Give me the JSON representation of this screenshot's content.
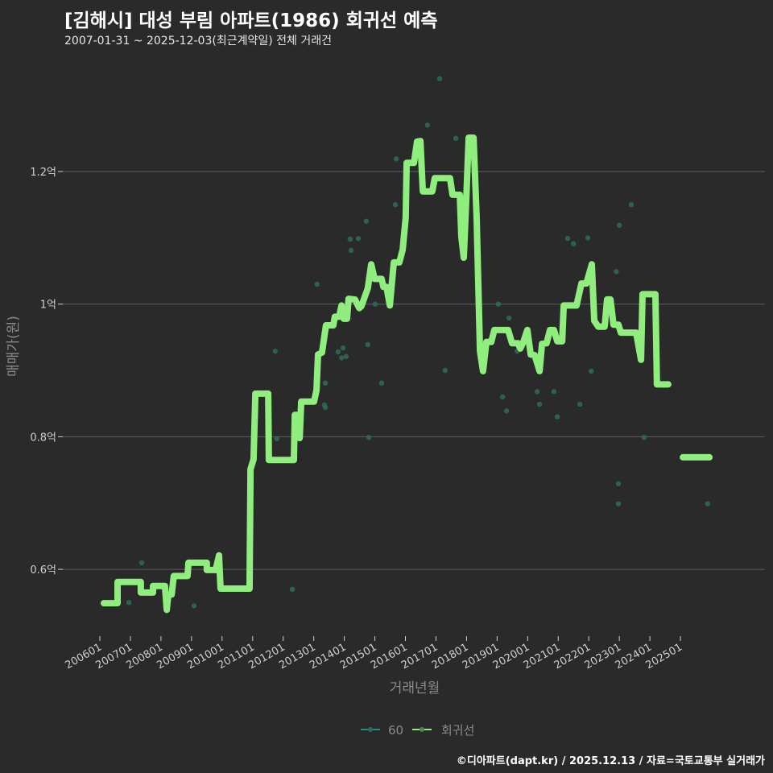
{
  "title": "[김해시] 대성 부림 아파트(1986) 회귀선 예측",
  "subtitle": "2007-01-31 ~ 2025-12-03(최근계약일) 전체 거래건",
  "footer": "©디아파트(dapt.kr) / 2025.12.13 / 자료=국토교통부 실거래가",
  "colors": {
    "background": "#2b2a2a",
    "grid": "#5e5e5e",
    "line": "#90ee7e",
    "scatter": "#2e6b5b",
    "legend_60": "#1f8a8a"
  },
  "chart_data": {
    "type": "line",
    "xlabel": "거래년월",
    "ylabel": "매매가(원)",
    "xlim": [
      2005.85,
      2028.8
    ],
    "ylim": [
      0.485,
      1.37
    ],
    "grid": true,
    "legend_position": "bottom",
    "legend": [
      "60",
      "회귀선"
    ],
    "x_ticks": [
      {
        "label": "200601",
        "x": 2006
      },
      {
        "label": "200701",
        "x": 2007
      },
      {
        "label": "200801",
        "x": 2008
      },
      {
        "label": "200901",
        "x": 2009
      },
      {
        "label": "201001",
        "x": 2010
      },
      {
        "label": "201101",
        "x": 2011
      },
      {
        "label": "201201",
        "x": 2012
      },
      {
        "label": "201301",
        "x": 2013
      },
      {
        "label": "201401",
        "x": 2014
      },
      {
        "label": "201501",
        "x": 2015
      },
      {
        "label": "201601",
        "x": 2016
      },
      {
        "label": "201701",
        "x": 2017
      },
      {
        "label": "201801",
        "x": 2018
      },
      {
        "label": "201901",
        "x": 2019
      },
      {
        "label": "202001",
        "x": 2020
      },
      {
        "label": "202101",
        "x": 2021
      },
      {
        "label": "202201",
        "x": 2022
      },
      {
        "label": "202301",
        "x": 2023
      },
      {
        "label": "202401",
        "x": 2024
      },
      {
        "label": "202501",
        "x": 2025
      }
    ],
    "y_ticks": [
      {
        "label": "0.6억",
        "y": 0.6
      },
      {
        "label": "0.8억",
        "y": 0.8
      },
      {
        "label": "1억",
        "y": 1.0
      },
      {
        "label": "1.2억",
        "y": 1.2
      }
    ],
    "series": [
      {
        "name": "회귀선",
        "type": "line",
        "segments": [
          [
            [
              2006.13,
              0.549
            ],
            [
              2006.58,
              0.549
            ],
            [
              2006.58,
              0.581
            ],
            [
              2007.34,
              0.581
            ],
            [
              2007.34,
              0.565
            ],
            [
              2007.74,
              0.565
            ],
            [
              2007.74,
              0.575
            ],
            [
              2008.13,
              0.575
            ],
            [
              2008.19,
              0.539
            ],
            [
              2008.24,
              0.562
            ],
            [
              2008.35,
              0.562
            ],
            [
              2008.42,
              0.59
            ],
            [
              2008.87,
              0.59
            ],
            [
              2008.9,
              0.61
            ],
            [
              2009.5,
              0.61
            ],
            [
              2009.5,
              0.599
            ],
            [
              2009.79,
              0.599
            ],
            [
              2009.9,
              0.621
            ],
            [
              2009.95,
              0.571
            ],
            [
              2010.9,
              0.571
            ],
            [
              2010.93,
              0.751
            ],
            [
              2011.03,
              0.766
            ],
            [
              2011.09,
              0.865
            ],
            [
              2011.51,
              0.865
            ],
            [
              2011.53,
              0.765
            ],
            [
              2012.35,
              0.765
            ],
            [
              2012.38,
              0.833
            ],
            [
              2012.48,
              0.833
            ],
            [
              2012.54,
              0.798
            ],
            [
              2012.59,
              0.853
            ],
            [
              2013.01,
              0.853
            ],
            [
              2013.09,
              0.87
            ],
            [
              2013.14,
              0.924
            ],
            [
              2013.27,
              0.927
            ],
            [
              2013.4,
              0.968
            ],
            [
              2013.64,
              0.968
            ],
            [
              2013.69,
              0.981
            ],
            [
              2013.83,
              0.981
            ],
            [
              2013.91,
              0.998
            ],
            [
              2013.98,
              0.978
            ],
            [
              2014.09,
              0.978
            ],
            [
              2014.14,
              1.008
            ],
            [
              2014.35,
              1.007
            ],
            [
              2014.49,
              0.994
            ],
            [
              2014.56,
              0.997
            ],
            [
              2014.77,
              1.024
            ],
            [
              2014.88,
              1.06
            ],
            [
              2014.99,
              1.038
            ],
            [
              2015.22,
              1.038
            ],
            [
              2015.28,
              1.026
            ],
            [
              2015.38,
              1.026
            ],
            [
              2015.49,
              0.998
            ],
            [
              2015.62,
              1.063
            ],
            [
              2015.8,
              1.063
            ],
            [
              2015.91,
              1.082
            ],
            [
              2016.01,
              1.131
            ],
            [
              2016.04,
              1.213
            ],
            [
              2016.28,
              1.213
            ],
            [
              2016.38,
              1.245
            ],
            [
              2016.49,
              1.246
            ],
            [
              2016.57,
              1.17
            ],
            [
              2016.88,
              1.17
            ],
            [
              2016.96,
              1.19
            ],
            [
              2017.46,
              1.19
            ],
            [
              2017.54,
              1.165
            ],
            [
              2017.78,
              1.165
            ],
            [
              2017.83,
              1.102
            ],
            [
              2017.91,
              1.07
            ],
            [
              2017.99,
              1.157
            ],
            [
              2018.07,
              1.251
            ],
            [
              2018.23,
              1.251
            ],
            [
              2018.33,
              1.131
            ],
            [
              2018.44,
              0.929
            ],
            [
              2018.54,
              0.899
            ],
            [
              2018.65,
              0.943
            ],
            [
              2018.81,
              0.943
            ],
            [
              2018.91,
              0.961
            ],
            [
              2019.36,
              0.961
            ],
            [
              2019.49,
              0.941
            ],
            [
              2019.68,
              0.941
            ],
            [
              2019.76,
              0.933
            ],
            [
              2019.86,
              0.943
            ],
            [
              2019.99,
              0.961
            ],
            [
              2020.1,
              0.924
            ],
            [
              2020.23,
              0.923
            ],
            [
              2020.39,
              0.899
            ],
            [
              2020.47,
              0.94
            ],
            [
              2020.62,
              0.941
            ],
            [
              2020.73,
              0.961
            ],
            [
              2020.86,
              0.961
            ],
            [
              2020.97,
              0.944
            ],
            [
              2021.13,
              0.944
            ],
            [
              2021.18,
              0.998
            ],
            [
              2021.6,
              0.998
            ],
            [
              2021.76,
              1.031
            ],
            [
              2021.92,
              1.031
            ],
            [
              2022.1,
              1.06
            ],
            [
              2022.18,
              0.975
            ],
            [
              2022.31,
              0.966
            ],
            [
              2022.52,
              0.966
            ],
            [
              2022.6,
              1.007
            ],
            [
              2022.71,
              1.007
            ],
            [
              2022.81,
              0.969
            ],
            [
              2022.97,
              0.969
            ],
            [
              2023.05,
              0.957
            ],
            [
              2023.55,
              0.957
            ],
            [
              2023.71,
              0.916
            ],
            [
              2023.76,
              1.015
            ],
            [
              2024.18,
              1.015
            ],
            [
              2024.23,
              0.879
            ],
            [
              2024.6,
              0.879
            ]
          ],
          [
            [
              2025.08,
              0.769
            ],
            [
              2025.95,
              0.769
            ]
          ]
        ]
      },
      {
        "name": "60",
        "type": "scatter",
        "points": [
          [
            2006.95,
            0.55
          ],
          [
            2007.37,
            0.61
          ],
          [
            2009.08,
            0.545
          ],
          [
            2011.74,
            0.929
          ],
          [
            2011.79,
            0.797
          ],
          [
            2012.3,
            0.57
          ],
          [
            2013.11,
            1.03
          ],
          [
            2013.35,
            0.848
          ],
          [
            2013.38,
            0.881
          ],
          [
            2013.38,
            0.844
          ],
          [
            2013.8,
            0.928
          ],
          [
            2013.91,
            0.919
          ],
          [
            2013.96,
            0.934
          ],
          [
            2014.06,
            0.921
          ],
          [
            2014.19,
            1.098
          ],
          [
            2014.22,
            1.081
          ],
          [
            2014.46,
            1.099
          ],
          [
            2014.72,
            1.125
          ],
          [
            2014.77,
            0.939
          ],
          [
            2014.8,
            0.799
          ],
          [
            2015.01,
            1.0
          ],
          [
            2015.22,
            0.881
          ],
          [
            2015.67,
            1.15
          ],
          [
            2015.7,
            1.219
          ],
          [
            2016.72,
            1.27
          ],
          [
            2017.12,
            1.34
          ],
          [
            2017.3,
            0.9
          ],
          [
            2017.65,
            1.25
          ],
          [
            2019.04,
            1.0
          ],
          [
            2019.18,
            0.86
          ],
          [
            2019.31,
            0.839
          ],
          [
            2019.39,
            0.979
          ],
          [
            2019.66,
            0.929
          ],
          [
            2020.31,
            0.868
          ],
          [
            2020.39,
            0.849
          ],
          [
            2020.86,
            0.868
          ],
          [
            2020.97,
            0.83
          ],
          [
            2021.31,
            1.099
          ],
          [
            2021.5,
            1.091
          ],
          [
            2021.71,
            0.849
          ],
          [
            2021.97,
            1.1
          ],
          [
            2022.08,
            0.899
          ],
          [
            2022.9,
            1.049
          ],
          [
            2022.97,
            0.699
          ],
          [
            2022.97,
            0.729
          ],
          [
            2023.0,
            1.119
          ],
          [
            2023.39,
            1.15
          ],
          [
            2023.81,
            0.799
          ],
          [
            2025.89,
            0.699
          ]
        ]
      }
    ]
  }
}
